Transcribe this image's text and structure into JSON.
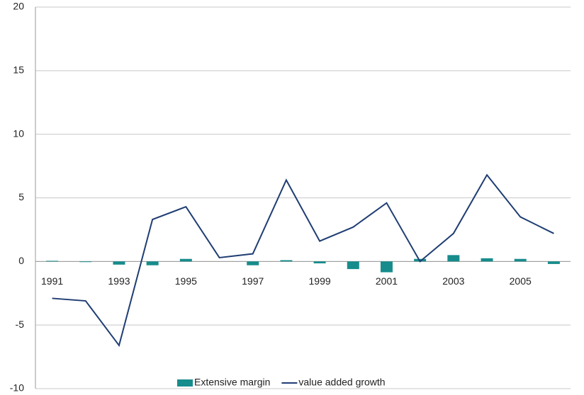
{
  "chart_data": {
    "type": "bar",
    "categories": [
      "1991",
      null,
      "1993",
      null,
      "1995",
      null,
      "1997",
      null,
      "1999",
      null,
      "2001",
      null,
      "2003",
      null,
      "2005",
      null
    ],
    "series": [
      {
        "name": "Extensive margin",
        "type": "bar",
        "color": "#178c8c",
        "values": [
          0.05,
          -0.05,
          -0.25,
          -0.3,
          0.2,
          0,
          -0.3,
          0.1,
          -0.15,
          -0.6,
          -0.85,
          0.2,
          0.5,
          0.25,
          0.2,
          -0.2
        ]
      },
      {
        "name": "value added growth",
        "type": "line",
        "color": "#1f3d73",
        "values": [
          -2.9,
          -3.1,
          -6.6,
          3.3,
          4.3,
          0.3,
          0.6,
          6.4,
          1.6,
          2.7,
          4.6,
          0.0,
          2.2,
          6.8,
          3.5,
          2.2
        ]
      }
    ],
    "ylim": [
      -10,
      20
    ],
    "yticks": [
      -10,
      -5,
      0,
      5,
      10,
      15,
      20
    ],
    "grid": true,
    "legend": "bottom"
  }
}
